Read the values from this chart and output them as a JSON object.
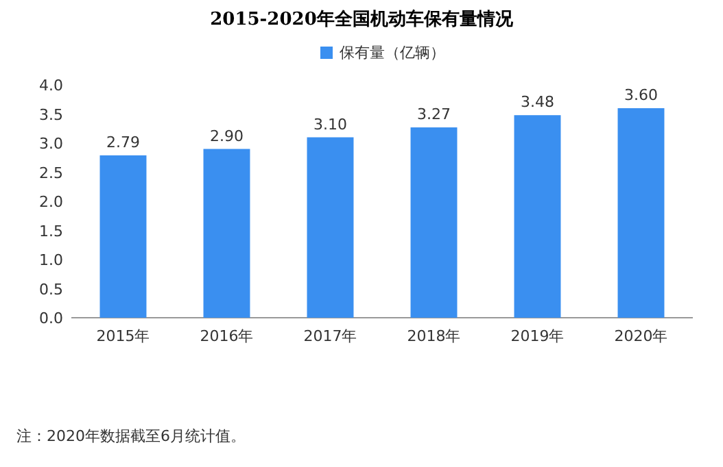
{
  "chart_data": {
    "type": "bar",
    "title": "2015-2020年全国机动车保有量情况",
    "categories": [
      "2015年",
      "2016年",
      "2017年",
      "2018年",
      "2019年",
      "2020年"
    ],
    "series": [
      {
        "name": "保有量（亿辆）",
        "color": "#3a8ff0",
        "values": [
          2.79,
          2.9,
          3.1,
          3.27,
          3.48,
          3.6
        ],
        "value_labels": [
          "2.79",
          "2.90",
          "3.10",
          "3.27",
          "3.48",
          "3.60"
        ]
      }
    ],
    "ylim": [
      0,
      4
    ],
    "yticks": [
      {
        "value": 0,
        "label": "0.0"
      },
      {
        "value": 0.5,
        "label": "0.5"
      },
      {
        "value": 1,
        "label": "1.0"
      },
      {
        "value": 1.5,
        "label": "1.5"
      },
      {
        "value": 2,
        "label": "2.0"
      },
      {
        "value": 2.5,
        "label": "2.5"
      },
      {
        "value": 3,
        "label": "3.0"
      },
      {
        "value": 3.5,
        "label": "3.5"
      },
      {
        "value": 4,
        "label": "4.0"
      }
    ],
    "legend": "top",
    "annotations": [
      "注：2020年数据截至6月统计值。"
    ]
  }
}
